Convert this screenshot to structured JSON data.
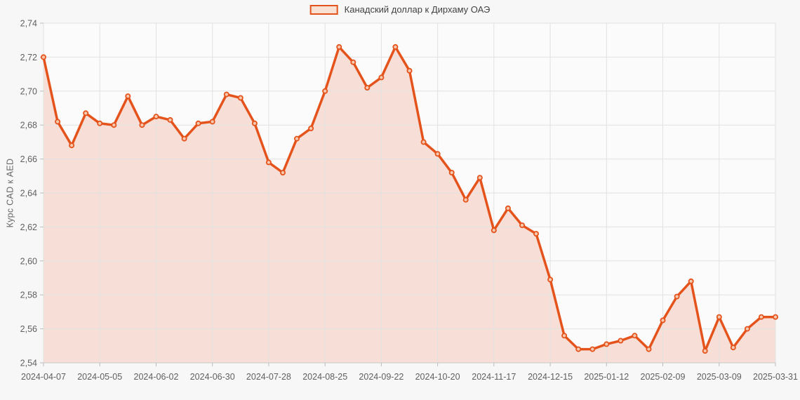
{
  "legend": {
    "label": "Канадский доллар к Дирхаму ОАЭ"
  },
  "chart_data": {
    "type": "area",
    "title": "",
    "xlabel": "",
    "ylabel": "Курс CAD к AED",
    "grid": true,
    "legend_position": "top-center",
    "decimal_separator": ",",
    "ylim": [
      2.54,
      2.74
    ],
    "y_tick_step": 0.02,
    "y_tick_labels": [
      "2,74",
      "2,72",
      "2,70",
      "2,68",
      "2,66",
      "2,64",
      "2,62",
      "2,60",
      "2,58",
      "2,56",
      "2,54"
    ],
    "x_tick_indices": [
      0,
      4,
      8,
      12,
      16,
      20,
      24,
      28,
      32,
      36,
      40,
      44,
      48,
      52
    ],
    "x_tick_labels": [
      "2024-04-07",
      "2024-05-05",
      "2024-06-02",
      "2024-06-30",
      "2024-07-28",
      "2024-08-25",
      "2024-09-22",
      "2024-10-20",
      "2024-11-17",
      "2024-12-15",
      "2025-01-12",
      "2025-02-09",
      "2025-03-09",
      "2025-03-31"
    ],
    "x": [
      "2024-04-07",
      "2024-04-14",
      "2024-04-21",
      "2024-04-28",
      "2024-05-05",
      "2024-05-12",
      "2024-05-19",
      "2024-05-26",
      "2024-06-02",
      "2024-06-09",
      "2024-06-16",
      "2024-06-23",
      "2024-06-30",
      "2024-07-07",
      "2024-07-14",
      "2024-07-21",
      "2024-07-28",
      "2024-08-04",
      "2024-08-11",
      "2024-08-18",
      "2024-08-25",
      "2024-09-01",
      "2024-09-08",
      "2024-09-15",
      "2024-09-22",
      "2024-09-29",
      "2024-10-06",
      "2024-10-13",
      "2024-10-20",
      "2024-10-27",
      "2024-11-03",
      "2024-11-10",
      "2024-11-17",
      "2024-11-24",
      "2024-12-01",
      "2024-12-08",
      "2024-12-15",
      "2024-12-22",
      "2024-12-29",
      "2025-01-05",
      "2025-01-12",
      "2025-01-19",
      "2025-01-26",
      "2025-02-02",
      "2025-02-09",
      "2025-02-16",
      "2025-02-23",
      "2025-03-02",
      "2025-03-09",
      "2025-03-16",
      "2025-03-23",
      "2025-03-30",
      "2025-03-31"
    ],
    "series": [
      {
        "name": "Канадский доллар к Дирхаму ОАЭ",
        "values": [
          2.72,
          2.682,
          2.668,
          2.687,
          2.681,
          2.68,
          2.697,
          2.68,
          2.685,
          2.683,
          2.672,
          2.681,
          2.682,
          2.698,
          2.696,
          2.681,
          2.658,
          2.652,
          2.672,
          2.678,
          2.7,
          2.726,
          2.717,
          2.702,
          2.708,
          2.726,
          2.712,
          2.67,
          2.663,
          2.652,
          2.636,
          2.649,
          2.618,
          2.631,
          2.621,
          2.616,
          2.589,
          2.556,
          2.548,
          2.548,
          2.551,
          2.553,
          2.556,
          2.548,
          2.565,
          2.579,
          2.588,
          2.547,
          2.567,
          2.549,
          2.56,
          2.567,
          2.567
        ]
      }
    ]
  },
  "colors": {
    "line": "#e5531c",
    "area_fill": "rgba(231,83,28,0.16)",
    "marker_fill": "#f6c9ae",
    "legend_swatch_fill": "#f8e1d3",
    "grid": "#e2e2e2",
    "axis": "#c9c9c9",
    "tick": "#bbbbbb",
    "tick_text": "#5f5f5f",
    "legend_text": "#424242",
    "plot_background": "#fbfbfb",
    "page_background": "#f7f7f7"
  }
}
